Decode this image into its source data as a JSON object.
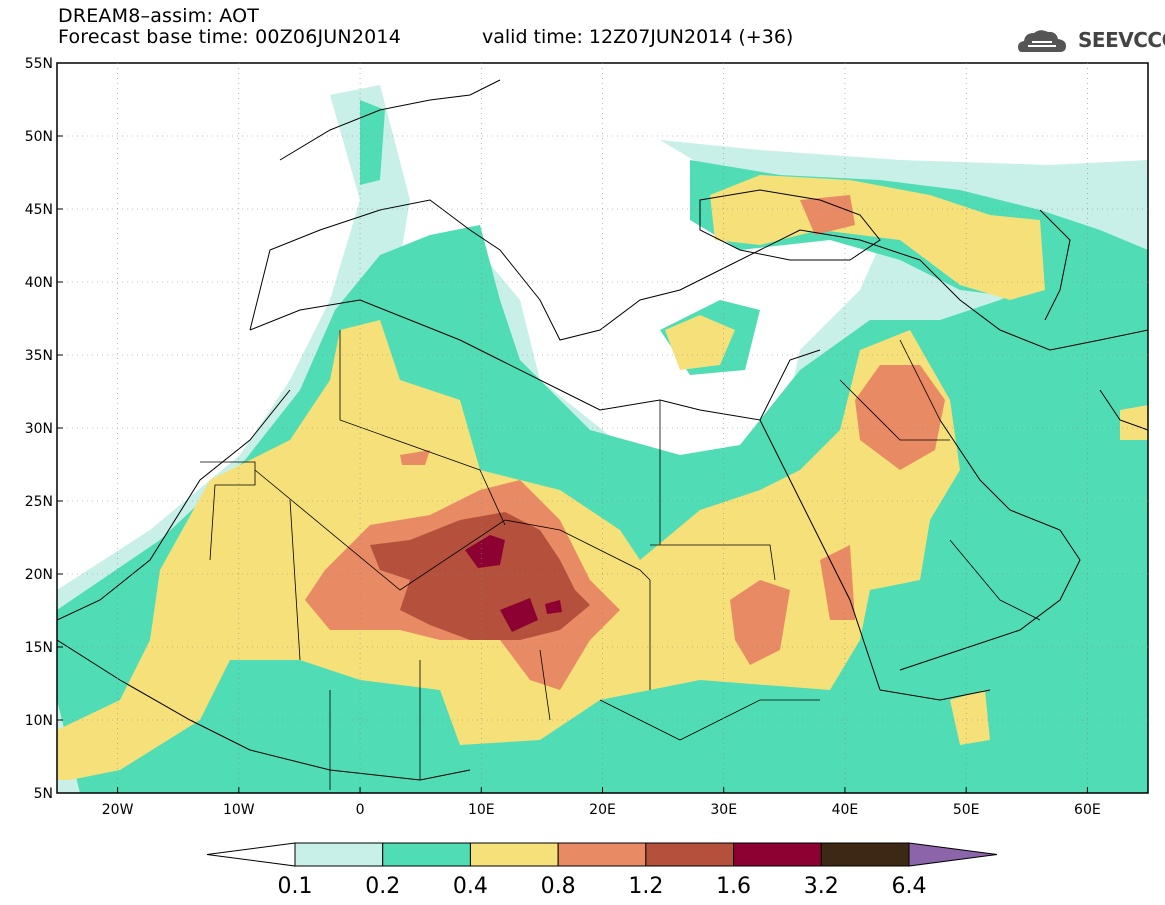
{
  "header": {
    "title_line1": "DREAM8–assim: AOT",
    "title_line2": "Forecast base time: 00Z06JUN2014",
    "valid_time": "valid time: 12Z07JUN2014 (+36)"
  },
  "logo": {
    "text": "SEEVCCC",
    "icon": "cloud-icon"
  },
  "map": {
    "lon_labels": [
      "20W",
      "10W",
      "0",
      "10E",
      "20E",
      "30E",
      "40E",
      "50E",
      "60E"
    ],
    "lat_labels": [
      "55N",
      "50N",
      "45N",
      "40N",
      "35N",
      "30N",
      "25N",
      "20N",
      "15N",
      "10N",
      "5N"
    ],
    "lon_range": [
      -25,
      65
    ],
    "lat_range": [
      5,
      55
    ]
  },
  "colorbar": {
    "labels": [
      "0.1",
      "0.2",
      "0.4",
      "0.8",
      "1.2",
      "1.6",
      "3.2",
      "6.4"
    ],
    "colors": [
      "#c8f0e8",
      "#50dcb4",
      "#f5e07a",
      "#e88a64",
      "#b4503c",
      "#8c0032",
      "#3c2814",
      "#8c64aa"
    ]
  }
}
